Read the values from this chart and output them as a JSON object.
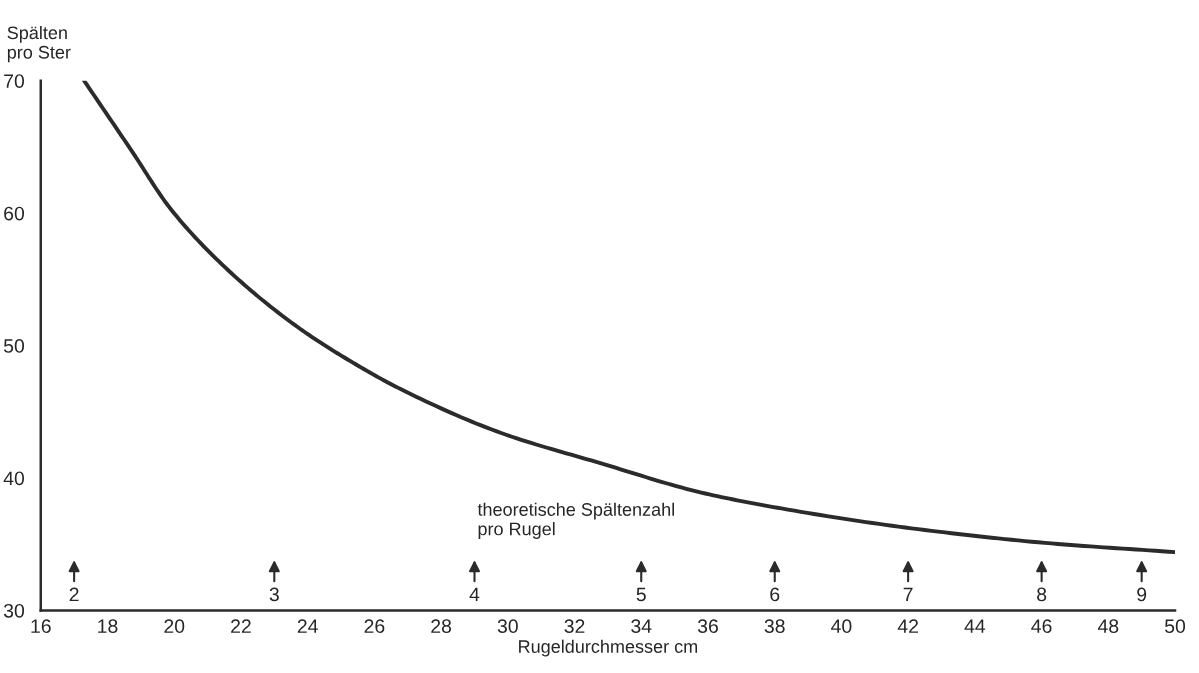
{
  "chart_data": {
    "type": "line",
    "ylabel": "Spälten\npro Ster",
    "xlabel": "Rugeldurchmesser cm",
    "x": [
      17.3,
      18.7,
      19.9,
      21.7,
      23.7,
      25.1,
      26.8,
      29.8,
      32.8,
      35.8,
      38.2,
      42.1,
      46.1,
      50
    ],
    "series": [
      {
        "color": "#2b2b2b",
        "values": [
          70,
          64.8,
          60.3,
          55.5,
          51.4,
          49.1,
          46.7,
          43.4,
          41.1,
          38.9,
          37.7,
          36.2,
          35.1,
          34.4
        ]
      }
    ],
    "xlim": [
      16,
      50
    ],
    "xticks": [
      16,
      18,
      20,
      22,
      24,
      26,
      28,
      30,
      32,
      34,
      36,
      38,
      40,
      42,
      44,
      46,
      48,
      50
    ],
    "ylim": [
      30,
      70
    ],
    "yticks": [
      30,
      40,
      50,
      60,
      70
    ],
    "grid": false,
    "marker": "none",
    "line_style": "solid",
    "legend": false,
    "annotations": [
      "theoretische Spältenzahl\npro Rugel",
      "2",
      "3",
      "4",
      "5",
      "6",
      "7",
      "8",
      "9"
    ]
  }
}
